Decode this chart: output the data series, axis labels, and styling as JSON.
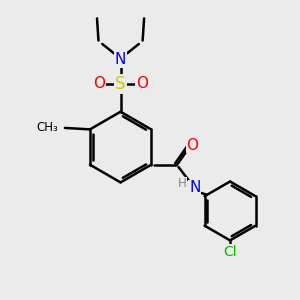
{
  "background_color": "#ebebeb",
  "bond_color": "#000000",
  "bond_width": 1.8,
  "atom_colors": {
    "N": "#0000ff",
    "O": "#ff0000",
    "S": "#cccc00",
    "Cl": "#00bb00",
    "H": "#888888"
  },
  "fig_size": [
    3.0,
    3.0
  ],
  "dpi": 100
}
